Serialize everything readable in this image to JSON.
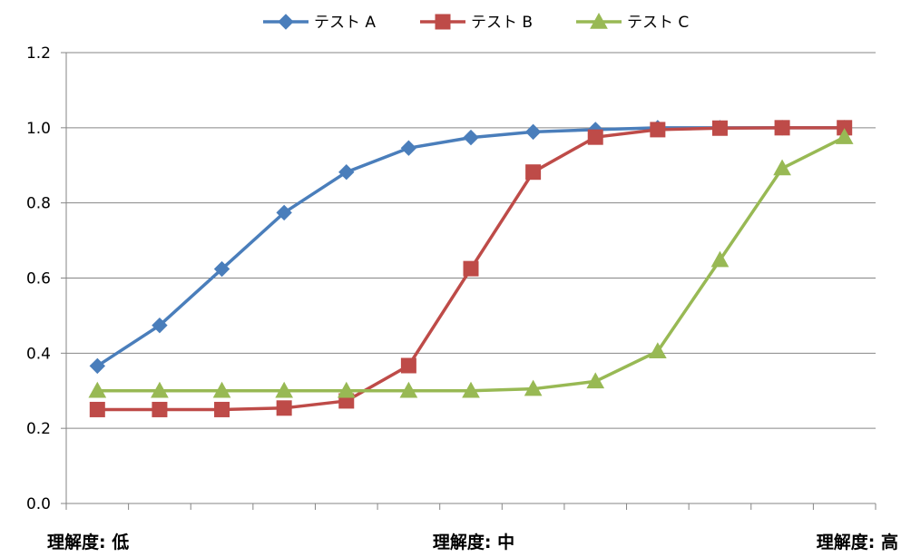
{
  "chart_data": {
    "type": "line",
    "title": "",
    "xlabel": "",
    "ylabel": "",
    "ylim": [
      0,
      1.2
    ],
    "yticks": [
      "0.0",
      "0.2",
      "0.4",
      "0.6",
      "0.8",
      "1.0",
      "1.2"
    ],
    "category_labels": [
      "理解度: 低",
      "理解度: 中",
      "理解度: 高"
    ],
    "grid": "horizontal",
    "legend_position": "top",
    "x": [
      1,
      2,
      3,
      4,
      5,
      6,
      7,
      8,
      9,
      10,
      11,
      12,
      13
    ],
    "series": [
      {
        "name": "テスト A",
        "color": "#4a7ebb",
        "marker": "diamond",
        "values": [
          0.366,
          0.474,
          0.624,
          0.774,
          0.882,
          0.946,
          0.974,
          0.989,
          0.995,
          1.0,
          1.0,
          1.0,
          1.0
        ]
      },
      {
        "name": "テスト B",
        "color": "#be4b48",
        "marker": "square",
        "values": [
          0.25,
          0.25,
          0.25,
          0.254,
          0.273,
          0.367,
          0.625,
          0.882,
          0.975,
          0.995,
          0.999,
          1.0,
          1.0
        ]
      },
      {
        "name": "テスト C",
        "color": "#98b954",
        "marker": "triangle",
        "values": [
          0.3,
          0.3,
          0.3,
          0.3,
          0.3,
          0.3,
          0.3,
          0.305,
          0.325,
          0.405,
          0.648,
          0.892,
          0.975
        ]
      }
    ]
  }
}
